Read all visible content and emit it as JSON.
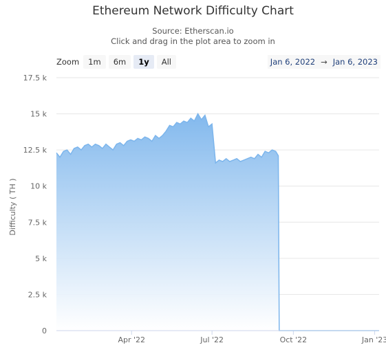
{
  "header": {
    "title": "Ethereum Network Difficulty Chart",
    "source": "Source: Etherscan.io",
    "hint": "Click and drag in the plot area to zoom in"
  },
  "zoom": {
    "label": "Zoom",
    "buttons": [
      "1m",
      "6m",
      "1y",
      "All"
    ],
    "active": "1y"
  },
  "range": {
    "from": "Jan 6, 2022",
    "arrow": "→",
    "to": "Jan 6, 2023"
  },
  "colors": {
    "series_line": "#7cb5ec",
    "fill_top": "#7cb5ec",
    "grid": "#e6e6e6"
  },
  "chart_data": {
    "type": "area",
    "title": "Ethereum Network Difficulty Chart",
    "subtitle": "Source: Etherscan.io",
    "ylabel": "Difficulty ( TH )",
    "xlabel": "",
    "ylim": [
      0,
      17500
    ],
    "xlim": [
      "2022-01-06",
      "2023-01-06"
    ],
    "yticks": [
      0,
      2500,
      5000,
      7500,
      10000,
      12500,
      15000,
      17500
    ],
    "ytick_labels": [
      "0",
      "2.5 k",
      "5 k",
      "7.5 k",
      "10 k",
      "12.5 k",
      "15 k",
      "17.5 k"
    ],
    "xticks": [
      "2022-04-01",
      "2022-07-01",
      "2022-10-01",
      "2023-01-01"
    ],
    "xtick_labels": [
      "Apr '22",
      "Jul '22",
      "Oct '22",
      "Jan '23"
    ],
    "grid": true,
    "legend": "none",
    "series": [
      {
        "x": [
          "2022-01-06",
          "2022-01-10",
          "2022-01-14",
          "2022-01-18",
          "2022-01-22",
          "2022-01-26",
          "2022-01-30",
          "2022-02-03",
          "2022-02-07",
          "2022-02-11",
          "2022-02-15",
          "2022-02-19",
          "2022-02-23",
          "2022-02-27",
          "2022-03-03",
          "2022-03-07",
          "2022-03-11",
          "2022-03-15",
          "2022-03-19",
          "2022-03-23",
          "2022-03-27",
          "2022-03-31",
          "2022-04-04",
          "2022-04-08",
          "2022-04-12",
          "2022-04-16",
          "2022-04-20",
          "2022-04-24",
          "2022-04-28",
          "2022-05-02",
          "2022-05-06",
          "2022-05-10",
          "2022-05-14",
          "2022-05-18",
          "2022-05-22",
          "2022-05-26",
          "2022-05-30",
          "2022-06-03",
          "2022-06-07",
          "2022-06-11",
          "2022-06-15",
          "2022-06-19",
          "2022-06-23",
          "2022-06-27",
          "2022-07-01",
          "2022-07-05",
          "2022-07-09",
          "2022-07-13",
          "2022-07-17",
          "2022-07-21",
          "2022-07-25",
          "2022-07-29",
          "2022-08-02",
          "2022-08-06",
          "2022-08-10",
          "2022-08-14",
          "2022-08-18",
          "2022-08-22",
          "2022-08-26",
          "2022-08-30",
          "2022-09-03",
          "2022-09-07",
          "2022-09-11",
          "2022-09-14",
          "2022-09-15",
          "2022-09-16",
          "2022-09-20",
          "2022-10-01",
          "2022-11-01",
          "2022-12-01",
          "2023-01-06"
        ],
        "y": [
          12300,
          12000,
          12400,
          12500,
          12200,
          12600,
          12700,
          12500,
          12800,
          12900,
          12700,
          12900,
          12800,
          12600,
          12900,
          12700,
          12500,
          12900,
          13000,
          12800,
          13100,
          13200,
          13100,
          13300,
          13200,
          13400,
          13300,
          13100,
          13500,
          13300,
          13500,
          13800,
          14200,
          14100,
          14400,
          14300,
          14500,
          14400,
          14700,
          14500,
          15000,
          14600,
          14900,
          14100,
          14300,
          11600,
          11800,
          11700,
          11900,
          11700,
          11800,
          11900,
          11700,
          11800,
          11900,
          12000,
          11900,
          12200,
          12000,
          12400,
          12300,
          12500,
          12400,
          12100,
          1,
          0,
          0,
          0,
          0,
          0,
          0
        ]
      }
    ]
  }
}
